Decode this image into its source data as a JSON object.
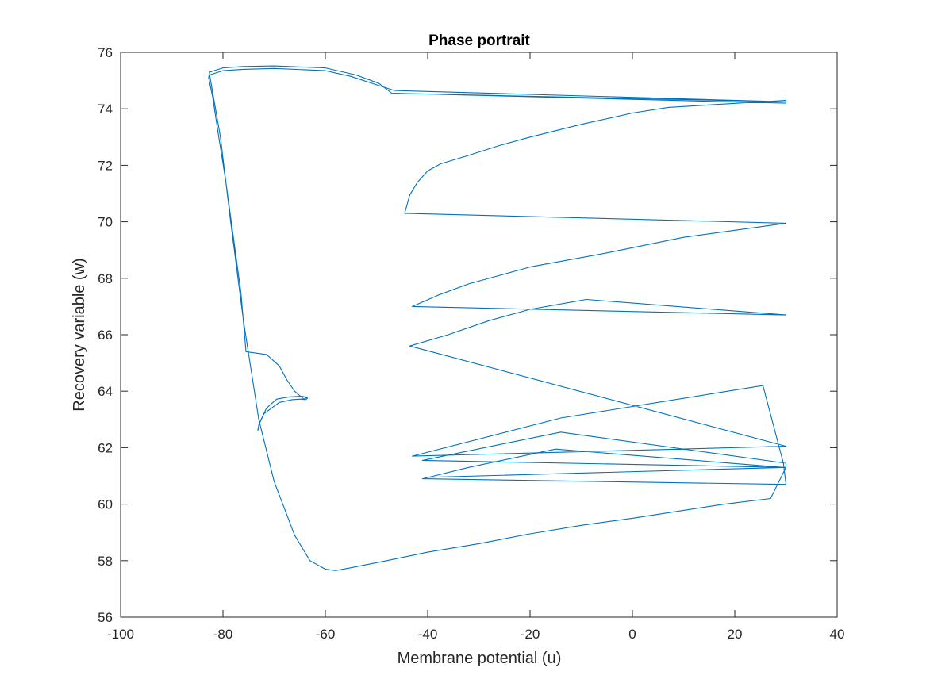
{
  "chart_data": {
    "type": "line",
    "title": "Phase portrait",
    "xlabel": "Membrane potential (u)",
    "ylabel": "Recovery variable (w)",
    "xlim": [
      -100,
      40
    ],
    "ylim": [
      56,
      76
    ],
    "xticks": [
      -100,
      -80,
      -60,
      -40,
      -20,
      0,
      20,
      40
    ],
    "yticks": [
      56,
      58,
      60,
      62,
      64,
      66,
      68,
      70,
      72,
      74,
      76
    ],
    "grid": false,
    "line_color": "#0072BD",
    "series": [
      {
        "x": [
          -64.0,
          -63.5,
          -63.8,
          -64.8,
          -66.5,
          -69.0,
          -72.0,
          -73.0,
          -73.2,
          -72.8,
          -71.5,
          -69.5,
          -67.0,
          -64.5,
          -63.5,
          -64.2,
          -66.0,
          -67.5,
          -69.0,
          -71.5,
          -75.5,
          -76.5,
          -78.0,
          -79.5,
          -81.0,
          -82.0,
          -82.8,
          -82.6,
          -80.0,
          -76.0,
          -70.0,
          -60.0,
          -54.0,
          -49.5,
          -47.0,
          30.0,
          -46.5,
          -50.0,
          -55.0,
          -60.0,
          -70.0,
          -76.0,
          -80.0,
          -82.6,
          -80.5,
          -78.5,
          -76.0,
          -73.0,
          -70.0,
          -66.0,
          -63.0,
          -60.0,
          -58.0,
          -55.0,
          -48.0,
          -40.0,
          -30.0,
          -20.0,
          -10.0,
          0.0,
          10.0,
          18.0,
          27.0,
          30.0,
          -40.0,
          30.0,
          30.0,
          -14.0,
          -41.0,
          30.0,
          29.5,
          -15.0,
          -32.0,
          -41.0,
          30.0,
          29.5,
          25.5,
          -14.0,
          -43.0,
          30.0,
          -43.5,
          -36.0,
          -28.0,
          -20.0,
          -9.0,
          30.0,
          -43.0,
          -38.0,
          -32.0,
          -20.0,
          -5.0,
          10.0,
          30.0,
          -44.5,
          -43.5,
          -42.0,
          -40.0,
          -37.5,
          -32.0,
          -26.0,
          -20.0,
          -10.0,
          0.0,
          7.0,
          30.0,
          30.0,
          -46.5
        ],
        "y": [
          63.8,
          63.75,
          63.7,
          63.72,
          63.7,
          63.6,
          63.2,
          62.8,
          62.6,
          62.9,
          63.4,
          63.72,
          63.8,
          63.82,
          63.78,
          63.72,
          64.0,
          64.4,
          64.9,
          65.3,
          65.4,
          67.5,
          69.5,
          71.5,
          73.2,
          74.4,
          75.1,
          75.3,
          75.45,
          75.5,
          75.52,
          75.45,
          75.2,
          74.9,
          74.55,
          74.25,
          74.65,
          74.85,
          75.15,
          75.35,
          75.43,
          75.4,
          75.35,
          75.2,
          73.0,
          70.0,
          66.5,
          63.0,
          60.8,
          58.9,
          58.0,
          57.7,
          57.65,
          57.75,
          58.0,
          58.3,
          58.6,
          58.95,
          59.25,
          59.5,
          59.78,
          60.0,
          60.2,
          61.3,
          60.95,
          61.3,
          61.45,
          62.55,
          61.55,
          61.3,
          61.3,
          61.95,
          61.3,
          60.9,
          60.7,
          61.45,
          64.2,
          63.05,
          61.7,
          62.05,
          65.6,
          66.0,
          66.5,
          66.9,
          67.25,
          66.7,
          67.0,
          67.4,
          67.8,
          68.4,
          68.9,
          69.45,
          69.95,
          70.3,
          70.95,
          71.4,
          71.8,
          72.05,
          72.35,
          72.7,
          73.0,
          73.45,
          73.85,
          74.05,
          74.3,
          74.2,
          74.55
        ]
      }
    ]
  }
}
